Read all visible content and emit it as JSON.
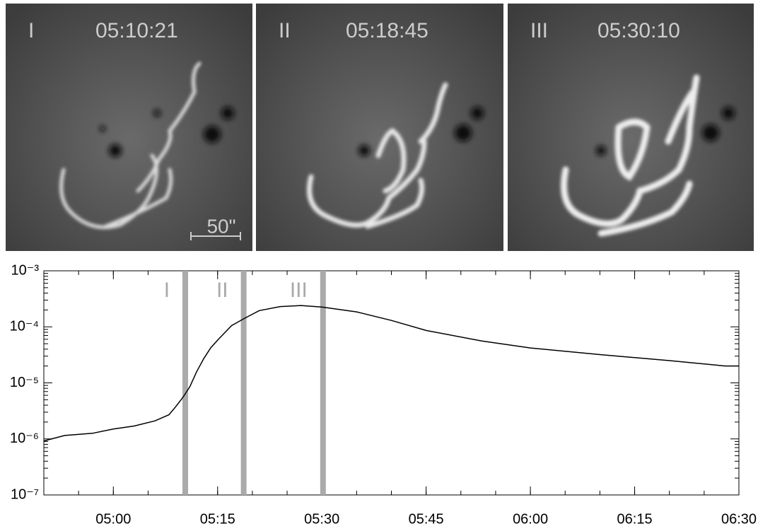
{
  "panels": [
    {
      "label": "I",
      "time": "05:10:21"
    },
    {
      "label": "II",
      "time": "05:18:45"
    },
    {
      "label": "III",
      "time": "05:30:10"
    }
  ],
  "scale_bar": "50\"",
  "chart_data": {
    "type": "line",
    "log_y": true,
    "color": "#000000",
    "marker_color": "#aaaaaa",
    "x": [
      "04:50",
      "04:53",
      "04:57",
      "05:00",
      "05:03",
      "05:06",
      "05:08",
      "05:09",
      "05:10",
      "05:11",
      "05:12",
      "05:13",
      "05:14",
      "05:15",
      "05:17",
      "05:19",
      "05:21",
      "05:24",
      "05:27",
      "05:30",
      "05:35",
      "05:40",
      "05:45",
      "05:53",
      "06:00",
      "06:10",
      "06:20",
      "06:28",
      "06:30"
    ],
    "values": [
      9.2e-07,
      1.15e-06,
      1.26e-06,
      1.5e-06,
      1.7e-06,
      2.1e-06,
      2.7e-06,
      3.8e-06,
      5.5e-06,
      8.5e-06,
      1.6e-05,
      2.7e-05,
      4.2e-05,
      5.8e-05,
      0.000105,
      0.000145,
      0.000195,
      0.00023,
      0.00024,
      0.000225,
      0.000185,
      0.00013,
      8.6e-05,
      5.6e-05,
      4.2e-05,
      3.2e-05,
      2.5e-05,
      2e-05,
      2e-05
    ],
    "xlim": [
      "04:50",
      "06:30"
    ],
    "xticks": [
      "05:00",
      "05:15",
      "05:30",
      "05:45",
      "06:00",
      "06:15",
      "06:30"
    ],
    "ylim": [
      1e-07,
      0.001
    ],
    "yticks": [
      {
        "value": 1e-07,
        "label": "10⁻⁷"
      },
      {
        "value": 1e-06,
        "label": "10⁻⁶"
      },
      {
        "value": 1e-05,
        "label": "10⁻⁵"
      },
      {
        "value": 0.0001,
        "label": "10⁻⁴"
      },
      {
        "value": 0.001,
        "label": "10⁻³"
      }
    ]
  }
}
